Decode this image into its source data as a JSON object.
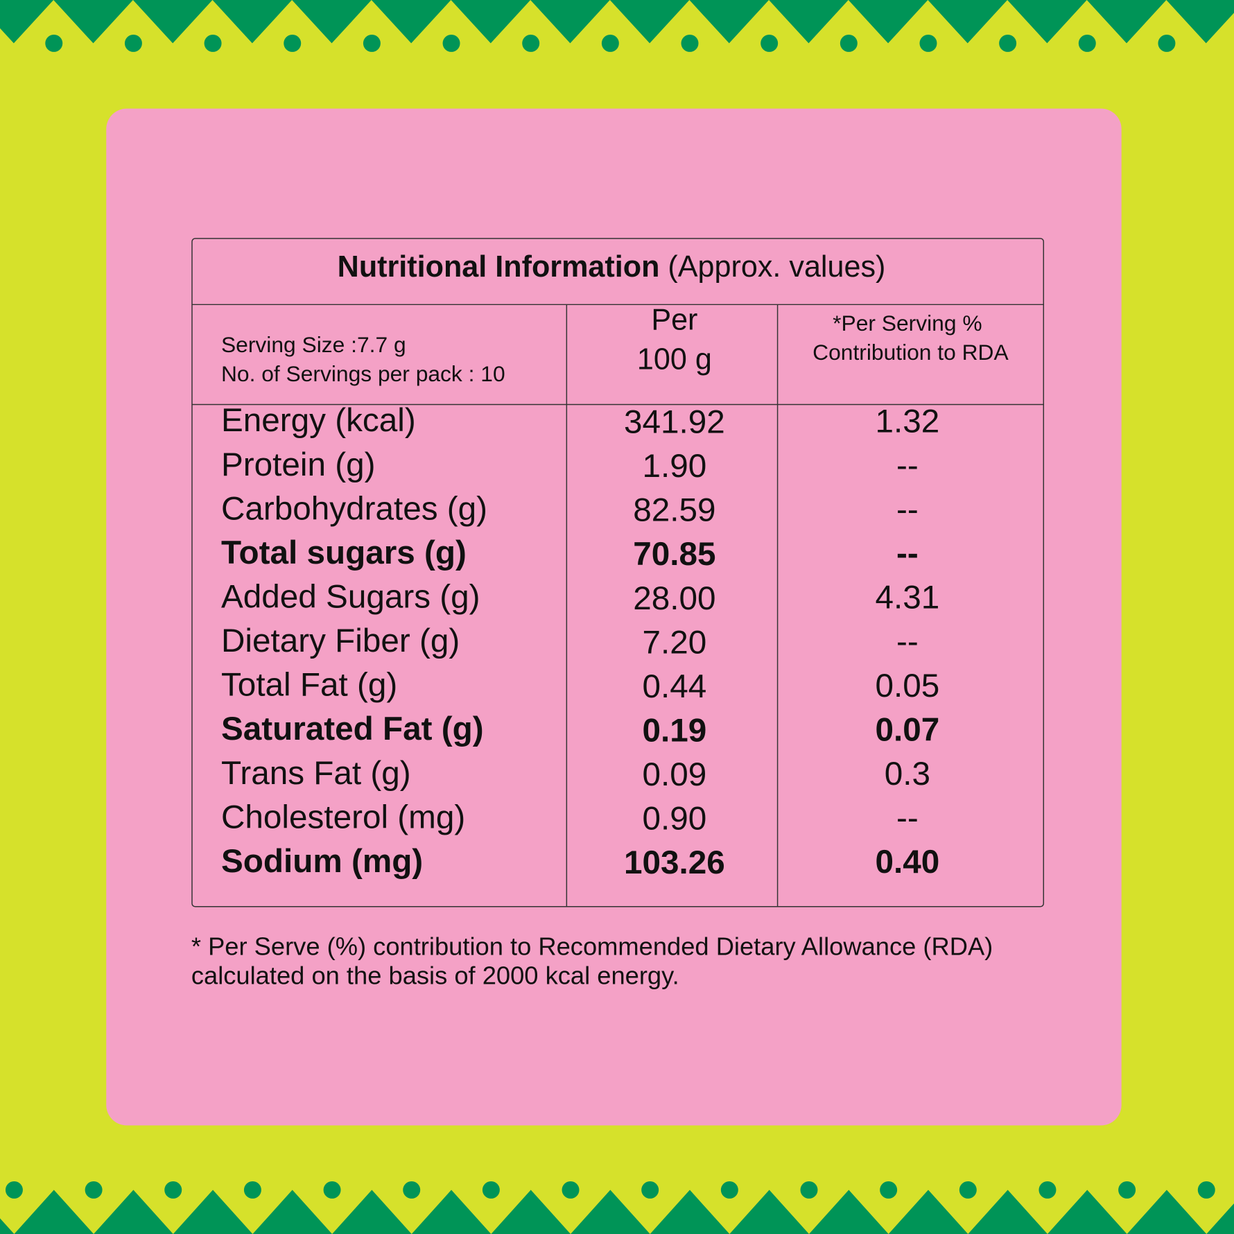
{
  "title": {
    "bold": "Nutritional Information",
    "rest": "(Approx. values)"
  },
  "serving": [
    "Serving Size :7.7 g",
    "No. of Servings per pack : 10"
  ],
  "columns": {
    "per_100g": [
      "Per",
      "100 g"
    ],
    "rda": [
      "*Per Serving %",
      "Contribution to RDA"
    ]
  },
  "rows": [
    {
      "nutrient": "Energy (kcal)",
      "per_100g": "341.92",
      "rda": "1.32",
      "bold": false
    },
    {
      "nutrient": "Protein (g)",
      "per_100g": "1.90",
      "rda": "--",
      "bold": false
    },
    {
      "nutrient": "Carbohydrates (g)",
      "per_100g": "82.59",
      "rda": "--",
      "bold": false
    },
    {
      "nutrient": "Total sugars (g)",
      "per_100g": "70.85",
      "rda": "--",
      "bold": true
    },
    {
      "nutrient": "Added Sugars (g)",
      "per_100g": "28.00",
      "rda": "4.31",
      "bold": false
    },
    {
      "nutrient": "Dietary Fiber (g)",
      "per_100g": "7.20",
      "rda": "--",
      "bold": false
    },
    {
      "nutrient": "Total Fat (g)",
      "per_100g": "0.44",
      "rda": "0.05",
      "bold": false
    },
    {
      "nutrient": "Saturated Fat (g)",
      "per_100g": "0.19",
      "rda": "0.07",
      "bold": true
    },
    {
      "nutrient": "Trans Fat (g)",
      "per_100g": "0.09",
      "rda": "0.3",
      "bold": false
    },
    {
      "nutrient": "Cholesterol (mg)",
      "per_100g": "0.90",
      "rda": "--",
      "bold": false
    },
    {
      "nutrient": "Sodium (mg)",
      "per_100g": "103.26",
      "rda": "0.40",
      "bold": true
    }
  ],
  "footnote": [
    "* Per Serve (%) contribution to Recommended Dietary Allowance (RDA)",
    "calculated on the basis of 2000 kcal energy."
  ]
}
